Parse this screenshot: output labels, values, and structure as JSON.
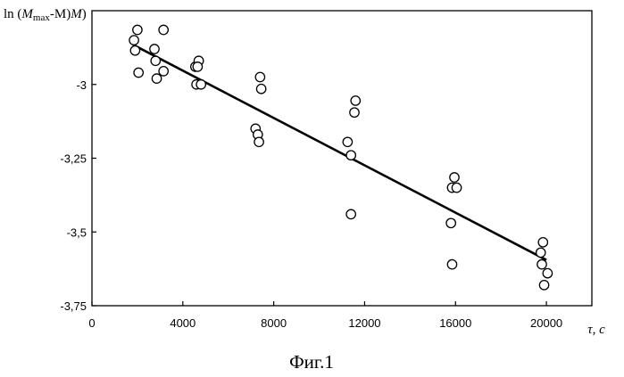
{
  "chart_data": {
    "type": "scatter",
    "title": "",
    "ylabel": "ln (M_max-M)",
    "ylabel_parts": {
      "prefix": "ln (",
      "var": "M",
      "sub": "max",
      "suffix": "-M)"
    },
    "xlabel": "τ, c",
    "xlim": [
      0,
      22000
    ],
    "ylim": [
      -3.75,
      -2.75
    ],
    "x_ticks": [
      0,
      4000,
      8000,
      12000,
      16000,
      20000
    ],
    "x_tick_labels": [
      "0",
      "4000",
      "8000",
      "12000",
      "16000",
      "20000"
    ],
    "y_ticks": [
      -3.0,
      -3.25,
      -3.5,
      -3.75
    ],
    "y_tick_labels": [
      "-3",
      "-3,25",
      "-3,5",
      "-3,75"
    ],
    "grid": false,
    "legend": "none",
    "marker": "open-circle",
    "points": [
      [
        1850,
        -2.85
      ],
      [
        2000,
        -2.815
      ],
      [
        1900,
        -2.885
      ],
      [
        2050,
        -2.96
      ],
      [
        3150,
        -2.815
      ],
      [
        2750,
        -2.88
      ],
      [
        2800,
        -2.92
      ],
      [
        2850,
        -2.98
      ],
      [
        3150,
        -2.955
      ],
      [
        4550,
        -2.94
      ],
      [
        4700,
        -2.92
      ],
      [
        4650,
        -2.94
      ],
      [
        4600,
        -3.0
      ],
      [
        4800,
        -3.0
      ],
      [
        7400,
        -2.975
      ],
      [
        7450,
        -3.015
      ],
      [
        7200,
        -3.15
      ],
      [
        7300,
        -3.17
      ],
      [
        7350,
        -3.195
      ],
      [
        11600,
        -3.055
      ],
      [
        11550,
        -3.095
      ],
      [
        11250,
        -3.195
      ],
      [
        11400,
        -3.24
      ],
      [
        11400,
        -3.44
      ],
      [
        15950,
        -3.315
      ],
      [
        15850,
        -3.35
      ],
      [
        16050,
        -3.35
      ],
      [
        15800,
        -3.47
      ],
      [
        15850,
        -3.61
      ],
      [
        19850,
        -3.535
      ],
      [
        19750,
        -3.57
      ],
      [
        19800,
        -3.61
      ],
      [
        20050,
        -3.64
      ],
      [
        19900,
        -3.68
      ]
    ],
    "fit_line": {
      "x": [
        1800,
        20000
      ],
      "y": [
        -2.865,
        -3.595
      ]
    }
  },
  "caption": "Фиг.1"
}
